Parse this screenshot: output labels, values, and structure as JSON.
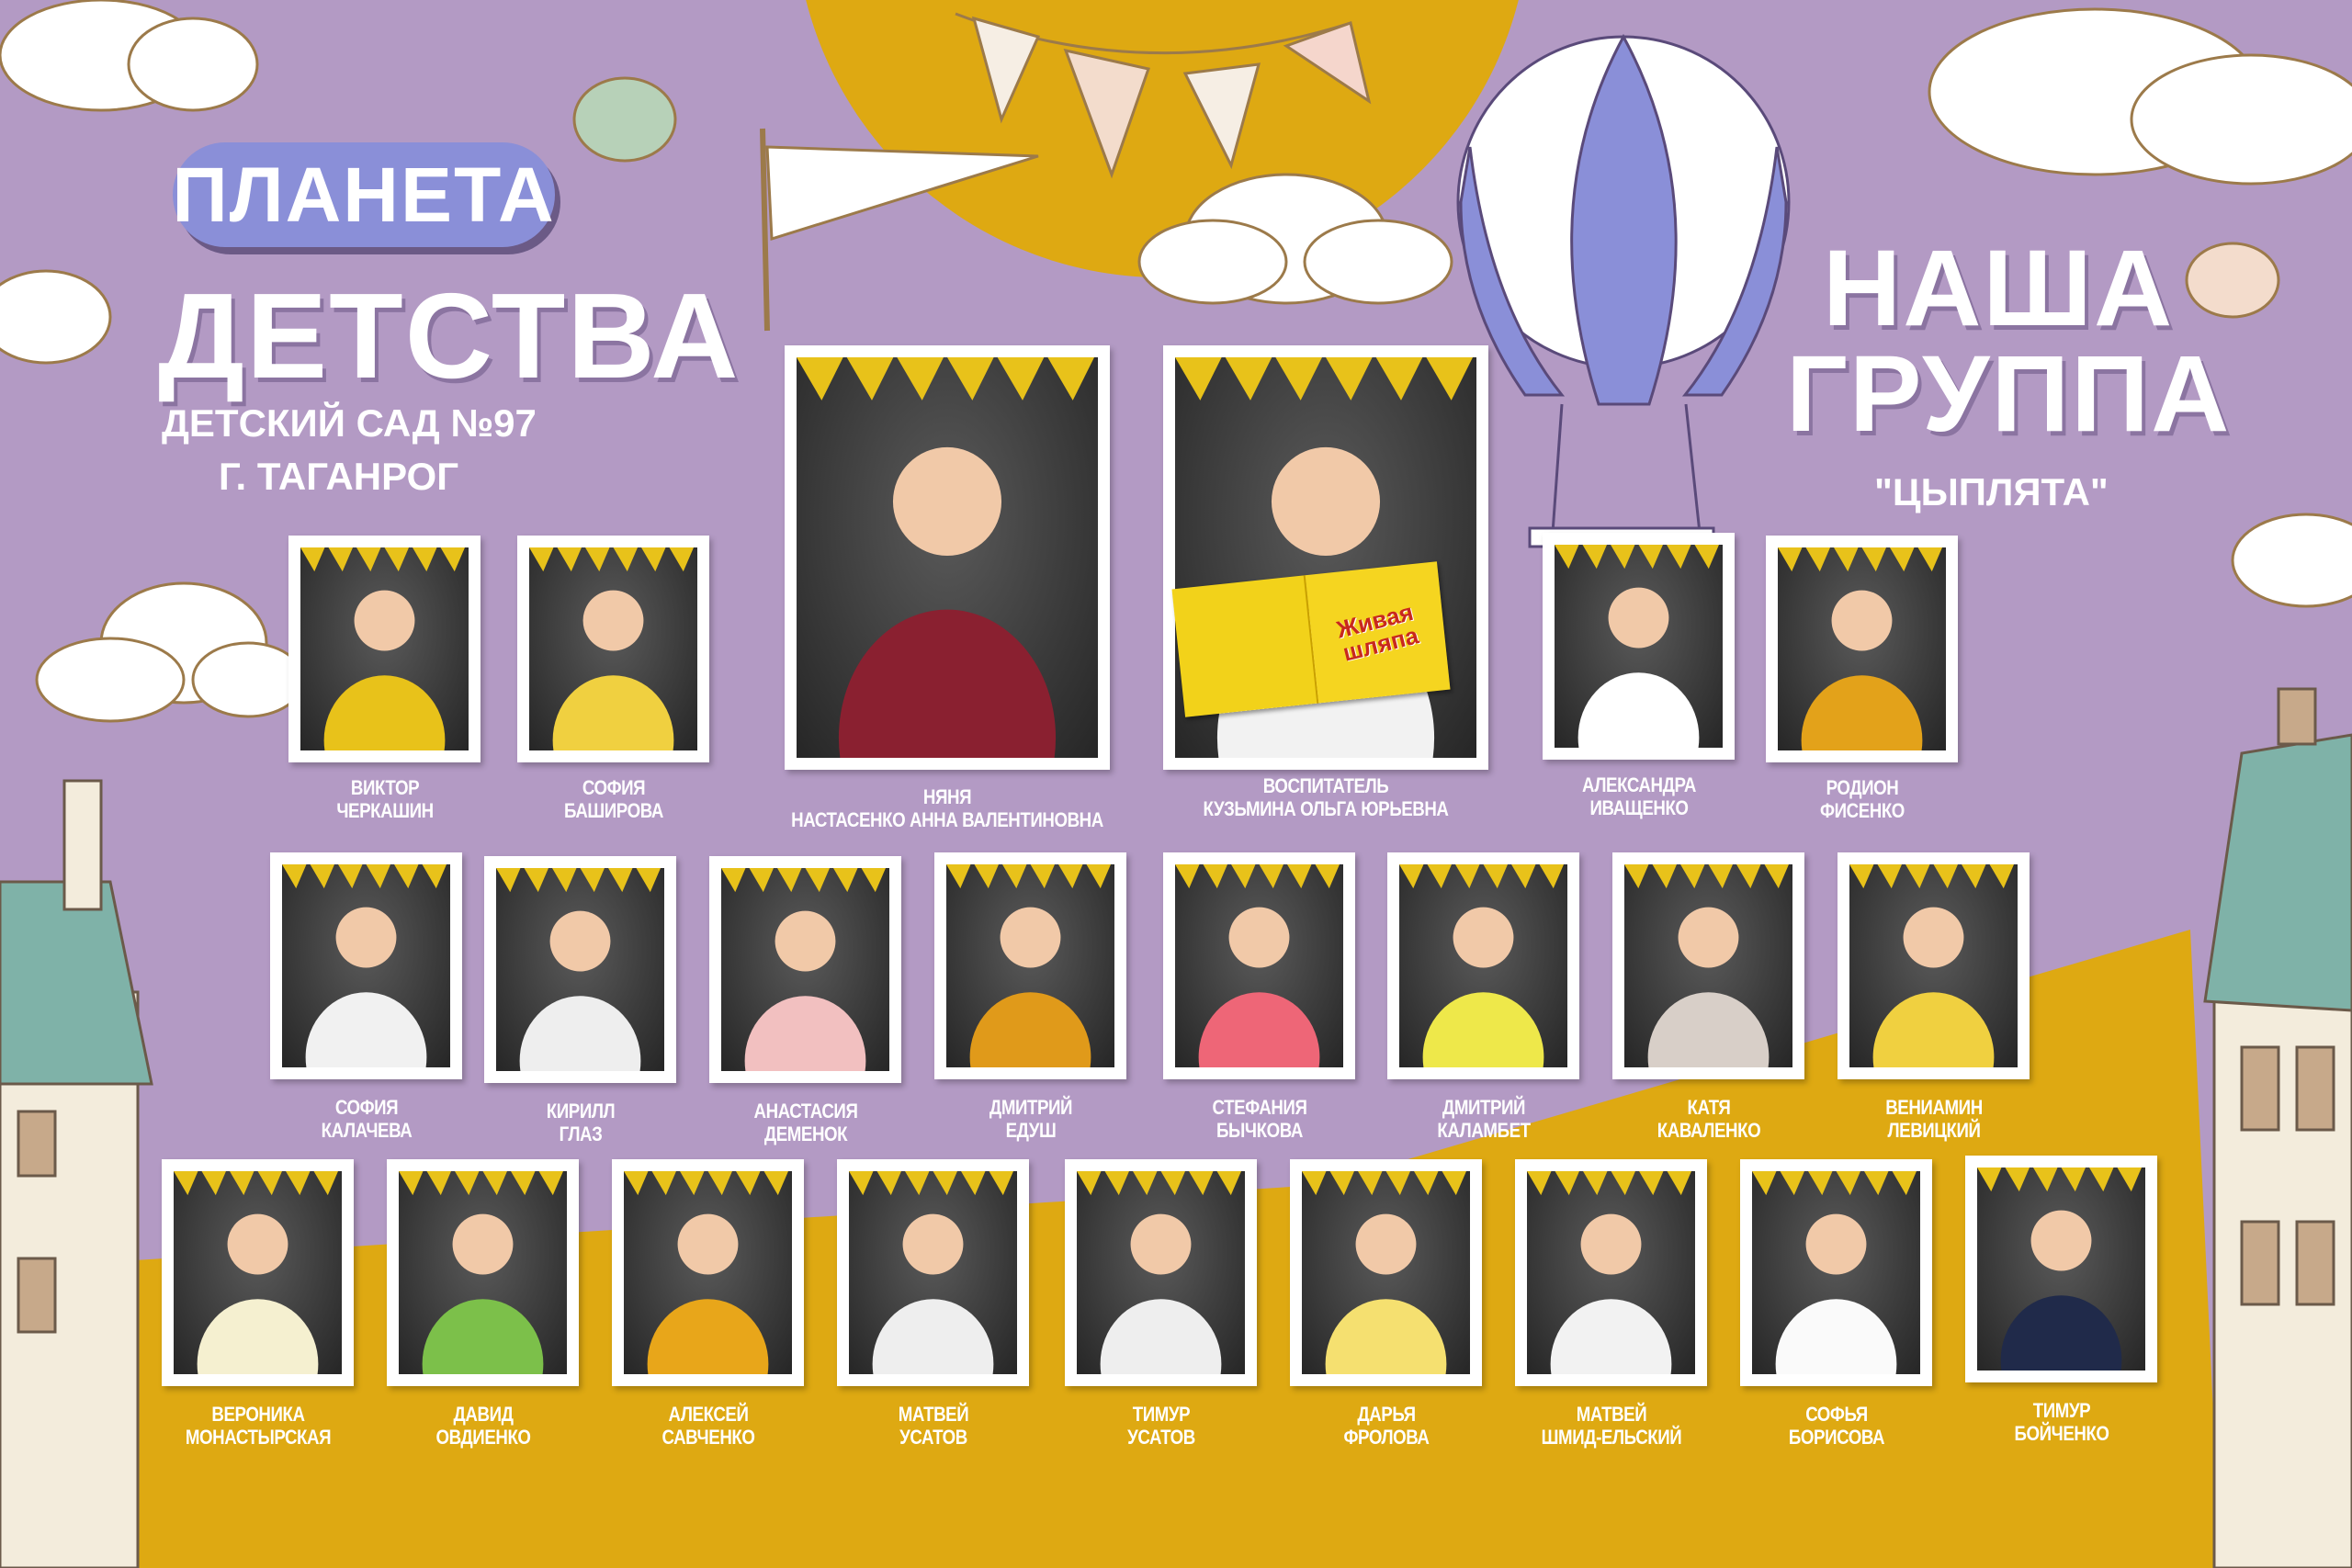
{
  "header": {
    "title_pill": "ПЛАНЕТА",
    "title_main": "ДЕТСТВА",
    "kindergarten": "ДЕТСКИЙ САД №97",
    "city": "Г. ТАГАНРОГ"
  },
  "group": {
    "line1": "НАША",
    "line2": "ГРУППА",
    "name": "\"ЦЫПЛЯТА\""
  },
  "colors": {
    "background": "#b39ac4",
    "accent_yellow": "#dea912",
    "pill": "#8a8fd8"
  },
  "staff": [
    {
      "role": "НЯНЯ",
      "name": "НАСТАСЕНКО АННА ВАЛЕНТИНОВНА"
    },
    {
      "role": "ВОСПИТАТЕЛЬ",
      "name": "КУЗЬМИНА ОЛЬГА ЮРЬЕВНА"
    }
  ],
  "children": [
    {
      "first": "ВИКТОР",
      "last": "ЧЕРКАШИН"
    },
    {
      "first": "СОФИЯ",
      "last": "БАШИРОВА"
    },
    {
      "first": "АЛЕКСАНДРА",
      "last": "ИВАЩЕНКО"
    },
    {
      "first": "РОДИОН",
      "last": "ФИСЕНКО"
    },
    {
      "first": "СОФИЯ",
      "last": "КАЛАЧЕВА"
    },
    {
      "first": "КИРИЛЛ",
      "last": "ГЛАЗ"
    },
    {
      "first": "АНАСТАСИЯ",
      "last": "ДЕМЕНОК"
    },
    {
      "first": "ДМИТРИЙ",
      "last": "ЕДУШ"
    },
    {
      "first": "СТЕФАНИЯ",
      "last": "БЫЧКОВА"
    },
    {
      "first": "ДМИТРИЙ",
      "last": "КАЛАМБЕТ"
    },
    {
      "first": "КАТЯ",
      "last": "КАВАЛЕНКО"
    },
    {
      "first": "ВЕНИАМИН",
      "last": "ЛЕВИЦКИЙ"
    },
    {
      "first": "ВЕРОНИКА",
      "last": "МОНАСТЫРСКАЯ"
    },
    {
      "first": "ДАВИД",
      "last": "ОВДИЕНКО"
    },
    {
      "first": "АЛЕКСЕЙ",
      "last": "САВЧЕНКО"
    },
    {
      "first": "МАТВЕЙ",
      "last": "УСАТОВ"
    },
    {
      "first": "ТИМУР",
      "last": "УСАТОВ"
    },
    {
      "first": "ДАРЬЯ",
      "last": "ФРОЛОВА"
    },
    {
      "first": "МАТВЕЙ",
      "last": "ШМИД-ЕЛЬСКИЙ"
    },
    {
      "first": "СОФЬЯ",
      "last": "БОРИСОВА"
    },
    {
      "first": "ТИМУР",
      "last": "БОЙЧЕНКО"
    }
  ],
  "book_title": "Живая шляпа"
}
